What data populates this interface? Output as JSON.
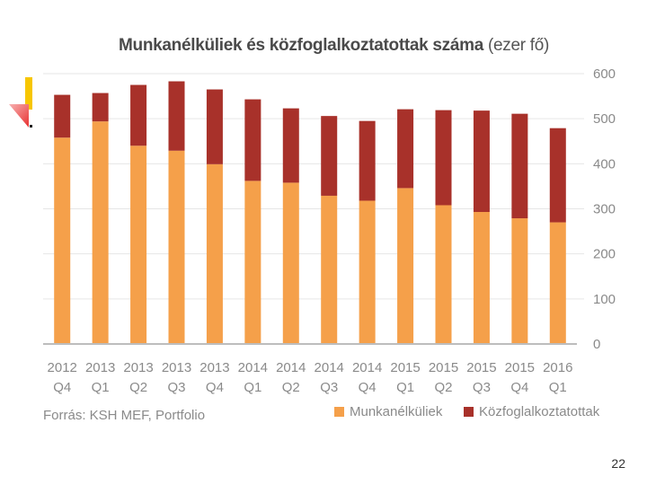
{
  "slide": {
    "page_number": "22"
  },
  "source": "Forrás: KSH MEF, Portfolio",
  "colors": {
    "unemployed": "#f5a04a",
    "public_workers": "#a8312a",
    "text": "#8a8a8a",
    "axis": "#bdbdbd"
  },
  "chart_data": {
    "type": "bar",
    "stacked": true,
    "title": "Munkanélküliek és közfoglalkoztatottak száma",
    "title_unit": "(ezer fő)",
    "categories": [
      [
        "2012",
        "Q4"
      ],
      [
        "2013",
        "Q1"
      ],
      [
        "2013",
        "Q2"
      ],
      [
        "2013",
        "Q3"
      ],
      [
        "2013",
        "Q4"
      ],
      [
        "2014",
        "Q1"
      ],
      [
        "2014",
        "Q2"
      ],
      [
        "2014",
        "Q3"
      ],
      [
        "2014",
        "Q4"
      ],
      [
        "2015",
        "Q1"
      ],
      [
        "2015",
        "Q2"
      ],
      [
        "2015",
        "Q3"
      ],
      [
        "2015",
        "Q4"
      ],
      [
        "2016",
        "Q1"
      ]
    ],
    "series": [
      {
        "name": "Munkanélküliek",
        "values": [
          458,
          494,
          440,
          429,
          399,
          362,
          358,
          329,
          318,
          346,
          308,
          293,
          279,
          270
        ]
      },
      {
        "name": "Közfoglalkoztatottak",
        "values": [
          95,
          63,
          135,
          154,
          166,
          181,
          165,
          177,
          177,
          175,
          211,
          225,
          232,
          209
        ]
      }
    ],
    "y_ticks": [
      "0",
      "100",
      "200",
      "300",
      "400",
      "500",
      "600"
    ],
    "ylim": [
      0,
      600
    ],
    "y_axis_position": "right",
    "legend_position": "bottom-right"
  }
}
